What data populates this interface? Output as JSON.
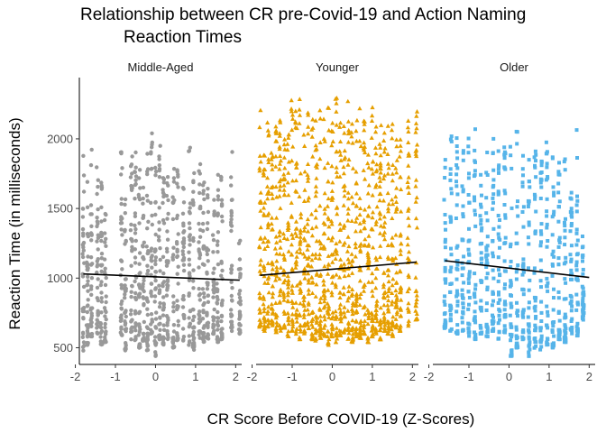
{
  "chart_data": {
    "type": "scatter",
    "title_lines": [
      "Relationship between CR pre-Covid-19 and Action Naming",
      "Reaction Times"
    ],
    "xlabel": "CR Score Before COVID-19 (Z-Scores)",
    "ylabel": "Reaction Time (in milliseconds)",
    "xlim": [
      -1.9,
      2.15
    ],
    "ylim": [
      380,
      2440
    ],
    "x_ticks": [
      -2,
      -1,
      0,
      1,
      2
    ],
    "y_ticks": [
      500,
      1000,
      1500,
      2000
    ],
    "grid": false,
    "legend": "none",
    "panels": [
      {
        "name": "Middle-Aged",
        "color": "#999999",
        "marker": "circle",
        "x_values": [
          -1.8,
          -1.7,
          -1.6,
          -1.45,
          -1.35,
          -1.25,
          -0.85,
          -0.75,
          -0.6,
          -0.5,
          -0.4,
          -0.3,
          -0.2,
          -0.1,
          0.0,
          0.1,
          0.2,
          0.3,
          0.45,
          0.55,
          0.7,
          0.85,
          0.95,
          1.1,
          1.2,
          1.3,
          1.45,
          1.55,
          1.65,
          1.9,
          2.1
        ],
        "y_min": [
          450,
          520,
          560,
          600,
          520,
          540,
          550,
          480,
          560,
          540,
          500,
          550,
          480,
          600,
          440,
          560,
          520,
          560,
          500,
          540,
          550,
          520,
          480,
          560,
          540,
          560,
          600,
          540,
          560,
          620,
          600
        ],
        "y_max": [
          1950,
          1700,
          2000,
          1850,
          1700,
          1600,
          2000,
          1650,
          1900,
          1950,
          1850,
          1750,
          1950,
          2050,
          2000,
          2030,
          1800,
          1850,
          1950,
          1800,
          1650,
          1950,
          1800,
          1900,
          1750,
          1700,
          1600,
          1800,
          1750,
          1950,
          1300
        ],
        "trend": [
          [
            -1.8,
            1030
          ],
          [
            2.1,
            985
          ]
        ]
      },
      {
        "name": "Younger",
        "color": "#E69F00",
        "marker": "triangle",
        "x_values": [
          -1.8,
          -1.7,
          -1.6,
          -1.5,
          -1.4,
          -1.3,
          -1.2,
          -1.1,
          -1.0,
          -0.9,
          -0.8,
          -0.7,
          -0.6,
          -0.5,
          -0.4,
          -0.3,
          -0.2,
          -0.1,
          0.0,
          0.1,
          0.2,
          0.3,
          0.4,
          0.5,
          0.6,
          0.7,
          0.8,
          0.9,
          1.0,
          1.1,
          1.2,
          1.3,
          1.4,
          1.5,
          1.6,
          1.7,
          1.9,
          2.1
        ],
        "y_min": [
          650,
          620,
          640,
          660,
          600,
          620,
          640,
          580,
          620,
          600,
          560,
          600,
          580,
          560,
          540,
          560,
          580,
          520,
          560,
          540,
          580,
          600,
          560,
          540,
          580,
          560,
          600,
          540,
          580,
          600,
          560,
          620,
          600,
          580,
          640,
          620,
          650,
          700
        ],
        "y_max": [
          2250,
          2000,
          2150,
          1950,
          2100,
          2200,
          2050,
          2150,
          2300,
          2200,
          2350,
          2100,
          2250,
          2300,
          2200,
          2300,
          2150,
          2350,
          2250,
          2300,
          2200,
          2100,
          2350,
          2250,
          2200,
          2300,
          2150,
          2000,
          2250,
          2200,
          2100,
          2050,
          2250,
          2200,
          2100,
          2000,
          2250,
          2300
        ],
        "trend": [
          [
            -1.8,
            1020
          ],
          [
            2.1,
            1115
          ]
        ]
      },
      {
        "name": "Older",
        "color": "#56B4E9",
        "marker": "square",
        "x_values": [
          -1.6,
          -1.45,
          -1.3,
          -1.15,
          -1.0,
          -0.85,
          -0.7,
          -0.55,
          -0.4,
          -0.25,
          -0.1,
          0.05,
          0.2,
          0.35,
          0.5,
          0.65,
          0.8,
          0.95,
          1.1,
          1.25,
          1.4,
          1.55,
          1.7,
          1.85
        ],
        "y_min": [
          640,
          620,
          600,
          620,
          580,
          560,
          600,
          580,
          620,
          560,
          600,
          440,
          500,
          560,
          440,
          480,
          460,
          520,
          500,
          560,
          540,
          600,
          580,
          700
        ],
        "y_max": [
          2100,
          2050,
          2100,
          2000,
          2050,
          2100,
          1900,
          2000,
          2050,
          1950,
          1950,
          2000,
          2100,
          1900,
          2000,
          2100,
          1900,
          2000,
          2050,
          1850,
          2000,
          1750,
          2100,
          1350
        ],
        "trend": [
          [
            -1.6,
            1125
          ],
          [
            2.0,
            1005
          ]
        ]
      }
    ]
  }
}
